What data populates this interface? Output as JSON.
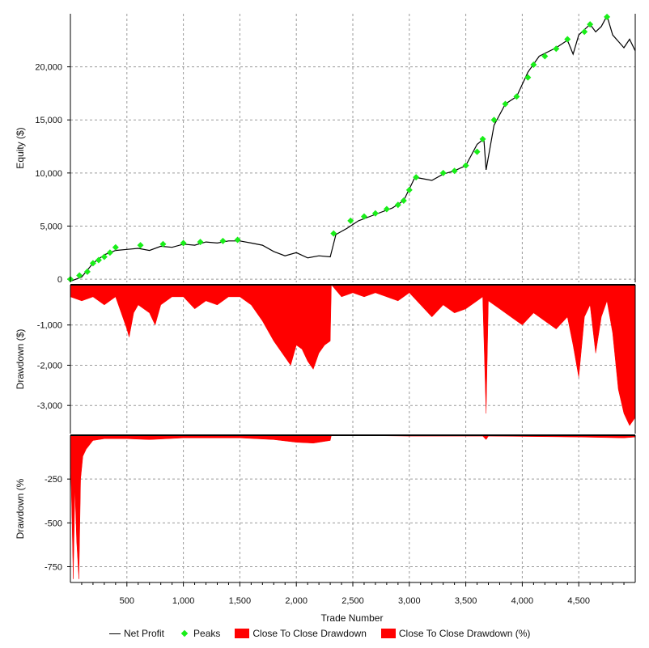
{
  "chart_data": {
    "type": "line",
    "x_axis": {
      "label": "Trade Number",
      "range": [
        0,
        5000
      ],
      "ticks": [
        500,
        1000,
        1500,
        2000,
        2500,
        3000,
        3500,
        4000,
        4500
      ],
      "tick_labels": [
        "500",
        "1,000",
        "1,500",
        "2,000",
        "2,500",
        "3,000",
        "3,500",
        "4,000",
        "4,500"
      ]
    },
    "panels": [
      {
        "id": "equity",
        "ylabel": "Equity ($)",
        "ylim": [
          -300,
          25000
        ],
        "yticks": [
          0,
          5000,
          10000,
          15000,
          20000
        ],
        "ytick_labels": [
          "0",
          "5,000",
          "10,000",
          "15,000",
          "20,000"
        ],
        "series": [
          {
            "name": "Net Profit",
            "color": "#000000",
            "points": [
              [
                0,
                -200
              ],
              [
                100,
                200
              ],
              [
                200,
                1500
              ],
              [
                300,
                2300
              ],
              [
                400,
                2700
              ],
              [
                500,
                2800
              ],
              [
                600,
                2900
              ],
              [
                700,
                2700
              ],
              [
                800,
                3100
              ],
              [
                900,
                3000
              ],
              [
                1000,
                3300
              ],
              [
                1100,
                3200
              ],
              [
                1200,
                3500
              ],
              [
                1300,
                3400
              ],
              [
                1400,
                3600
              ],
              [
                1500,
                3600
              ],
              [
                1600,
                3400
              ],
              [
                1700,
                3200
              ],
              [
                1800,
                2600
              ],
              [
                1900,
                2200
              ],
              [
                2000,
                2500
              ],
              [
                2100,
                2000
              ],
              [
                2200,
                2200
              ],
              [
                2300,
                2100
              ],
              [
                2350,
                4200
              ],
              [
                2450,
                4800
              ],
              [
                2550,
                5500
              ],
              [
                2700,
                6100
              ],
              [
                2850,
                6700
              ],
              [
                2950,
                7400
              ],
              [
                3050,
                9600
              ],
              [
                3200,
                9300
              ],
              [
                3300,
                9900
              ],
              [
                3400,
                10200
              ],
              [
                3500,
                10700
              ],
              [
                3600,
                12700
              ],
              [
                3660,
                13200
              ],
              [
                3680,
                10300
              ],
              [
                3750,
                14500
              ],
              [
                3850,
                16500
              ],
              [
                3950,
                17200
              ],
              [
                4050,
                19500
              ],
              [
                4150,
                21000
              ],
              [
                4300,
                21800
              ],
              [
                4400,
                22500
              ],
              [
                4450,
                21200
              ],
              [
                4500,
                23000
              ],
              [
                4600,
                24000
              ],
              [
                4650,
                23300
              ],
              [
                4700,
                23800
              ],
              [
                4750,
                24800
              ],
              [
                4800,
                23000
              ],
              [
                4900,
                21800
              ],
              [
                4950,
                22600
              ],
              [
                5000,
                21500
              ]
            ]
          },
          {
            "name": "Peaks",
            "color": "#19ee19",
            "points": [
              [
                0,
                0
              ],
              [
                80,
                350
              ],
              [
                150,
                700
              ],
              [
                200,
                1500
              ],
              [
                250,
                1800
              ],
              [
                300,
                2100
              ],
              [
                350,
                2500
              ],
              [
                400,
                3000
              ],
              [
                620,
                3200
              ],
              [
                820,
                3300
              ],
              [
                1000,
                3400
              ],
              [
                1150,
                3500
              ],
              [
                1350,
                3600
              ],
              [
                1480,
                3700
              ],
              [
                2330,
                4300
              ],
              [
                2480,
                5500
              ],
              [
                2600,
                5900
              ],
              [
                2700,
                6200
              ],
              [
                2800,
                6600
              ],
              [
                2900,
                7000
              ],
              [
                2950,
                7400
              ],
              [
                3000,
                8400
              ],
              [
                3060,
                9600
              ],
              [
                3300,
                10000
              ],
              [
                3400,
                10200
              ],
              [
                3500,
                10700
              ],
              [
                3600,
                12000
              ],
              [
                3650,
                13200
              ],
              [
                3750,
                15000
              ],
              [
                3850,
                16500
              ],
              [
                3950,
                17200
              ],
              [
                4050,
                19000
              ],
              [
                4100,
                20200
              ],
              [
                4200,
                21000
              ],
              [
                4300,
                21700
              ],
              [
                4400,
                22600
              ],
              [
                4550,
                23300
              ],
              [
                4600,
                24000
              ],
              [
                4750,
                24700
              ]
            ]
          }
        ]
      },
      {
        "id": "drawdown_usd",
        "ylabel": "Drawdown ($)",
        "ylim": [
          -3700,
          0
        ],
        "yticks": [
          -1000,
          -2000,
          -3000
        ],
        "ytick_labels": [
          "-1,000",
          "-2,000",
          "-3,000"
        ],
        "series": [
          {
            "name": "Close To Close Drawdown",
            "color": "#ff0000",
            "points": [
              [
                0,
                -300
              ],
              [
                100,
                -400
              ],
              [
                200,
                -300
              ],
              [
                300,
                -500
              ],
              [
                400,
                -300
              ],
              [
                450,
                -700
              ],
              [
                500,
                -1100
              ],
              [
                520,
                -1300
              ],
              [
                560,
                -700
              ],
              [
                600,
                -500
              ],
              [
                700,
                -700
              ],
              [
                750,
                -1000
              ],
              [
                800,
                -500
              ],
              [
                900,
                -300
              ],
              [
                1000,
                -300
              ],
              [
                1100,
                -600
              ],
              [
                1200,
                -400
              ],
              [
                1300,
                -500
              ],
              [
                1400,
                -300
              ],
              [
                1500,
                -300
              ],
              [
                1600,
                -500
              ],
              [
                1700,
                -900
              ],
              [
                1800,
                -1400
              ],
              [
                1900,
                -1800
              ],
              [
                1950,
                -2000
              ],
              [
                2000,
                -1500
              ],
              [
                2050,
                -1600
              ],
              [
                2100,
                -1900
              ],
              [
                2150,
                -2100
              ],
              [
                2200,
                -1700
              ],
              [
                2250,
                -1500
              ],
              [
                2300,
                -1400
              ],
              [
                2310,
                0
              ],
              [
                2400,
                -300
              ],
              [
                2500,
                -200
              ],
              [
                2600,
                -300
              ],
              [
                2700,
                -200
              ],
              [
                2800,
                -300
              ],
              [
                2900,
                -400
              ],
              [
                3000,
                -200
              ],
              [
                3100,
                -500
              ],
              [
                3200,
                -800
              ],
              [
                3300,
                -500
              ],
              [
                3400,
                -700
              ],
              [
                3500,
                -600
              ],
              [
                3600,
                -400
              ],
              [
                3650,
                -300
              ],
              [
                3680,
                -3200
              ],
              [
                3700,
                -400
              ],
              [
                3800,
                -600
              ],
              [
                3900,
                -800
              ],
              [
                4000,
                -1000
              ],
              [
                4100,
                -700
              ],
              [
                4200,
                -900
              ],
              [
                4300,
                -1100
              ],
              [
                4400,
                -800
              ],
              [
                4450,
                -1500
              ],
              [
                4500,
                -2300
              ],
              [
                4550,
                -800
              ],
              [
                4600,
                -500
              ],
              [
                4650,
                -1700
              ],
              [
                4700,
                -800
              ],
              [
                4750,
                -400
              ],
              [
                4800,
                -1200
              ],
              [
                4850,
                -2600
              ],
              [
                4900,
                -3200
              ],
              [
                4950,
                -3500
              ],
              [
                5000,
                -3300
              ]
            ]
          }
        ]
      },
      {
        "id": "drawdown_pct",
        "ylabel": "Drawdown (%",
        "ylim": [
          -840,
          0
        ],
        "yticks": [
          -250,
          -500,
          -750
        ],
        "ytick_labels": [
          "-250",
          "-500",
          "-750"
        ],
        "series": [
          {
            "name": "Close To Close Drawdown (%)",
            "color": "#ff0000",
            "points": [
              [
                0,
                -90
              ],
              [
                15,
                -500
              ],
              [
                25,
                -820
              ],
              [
                40,
                -300
              ],
              [
                55,
                -600
              ],
              [
                75,
                -820
              ],
              [
                90,
                -250
              ],
              [
                110,
                -120
              ],
              [
                140,
                -80
              ],
              [
                200,
                -30
              ],
              [
                300,
                -20
              ],
              [
                500,
                -20
              ],
              [
                700,
                -25
              ],
              [
                1000,
                -15
              ],
              [
                1500,
                -15
              ],
              [
                1800,
                -25
              ],
              [
                2000,
                -40
              ],
              [
                2150,
                -45
              ],
              [
                2300,
                -30
              ],
              [
                2310,
                0
              ],
              [
                3000,
                -5
              ],
              [
                3650,
                -5
              ],
              [
                3680,
                -25
              ],
              [
                3700,
                -5
              ],
              [
                4500,
                -10
              ],
              [
                4900,
                -15
              ],
              [
                5000,
                -10
              ]
            ]
          }
        ]
      }
    ],
    "legend": {
      "position": "bottom",
      "entries": [
        "Net Profit",
        "Peaks",
        "Close To Close Drawdown",
        "Close To Close Drawdown (%)"
      ]
    },
    "grid": true
  }
}
